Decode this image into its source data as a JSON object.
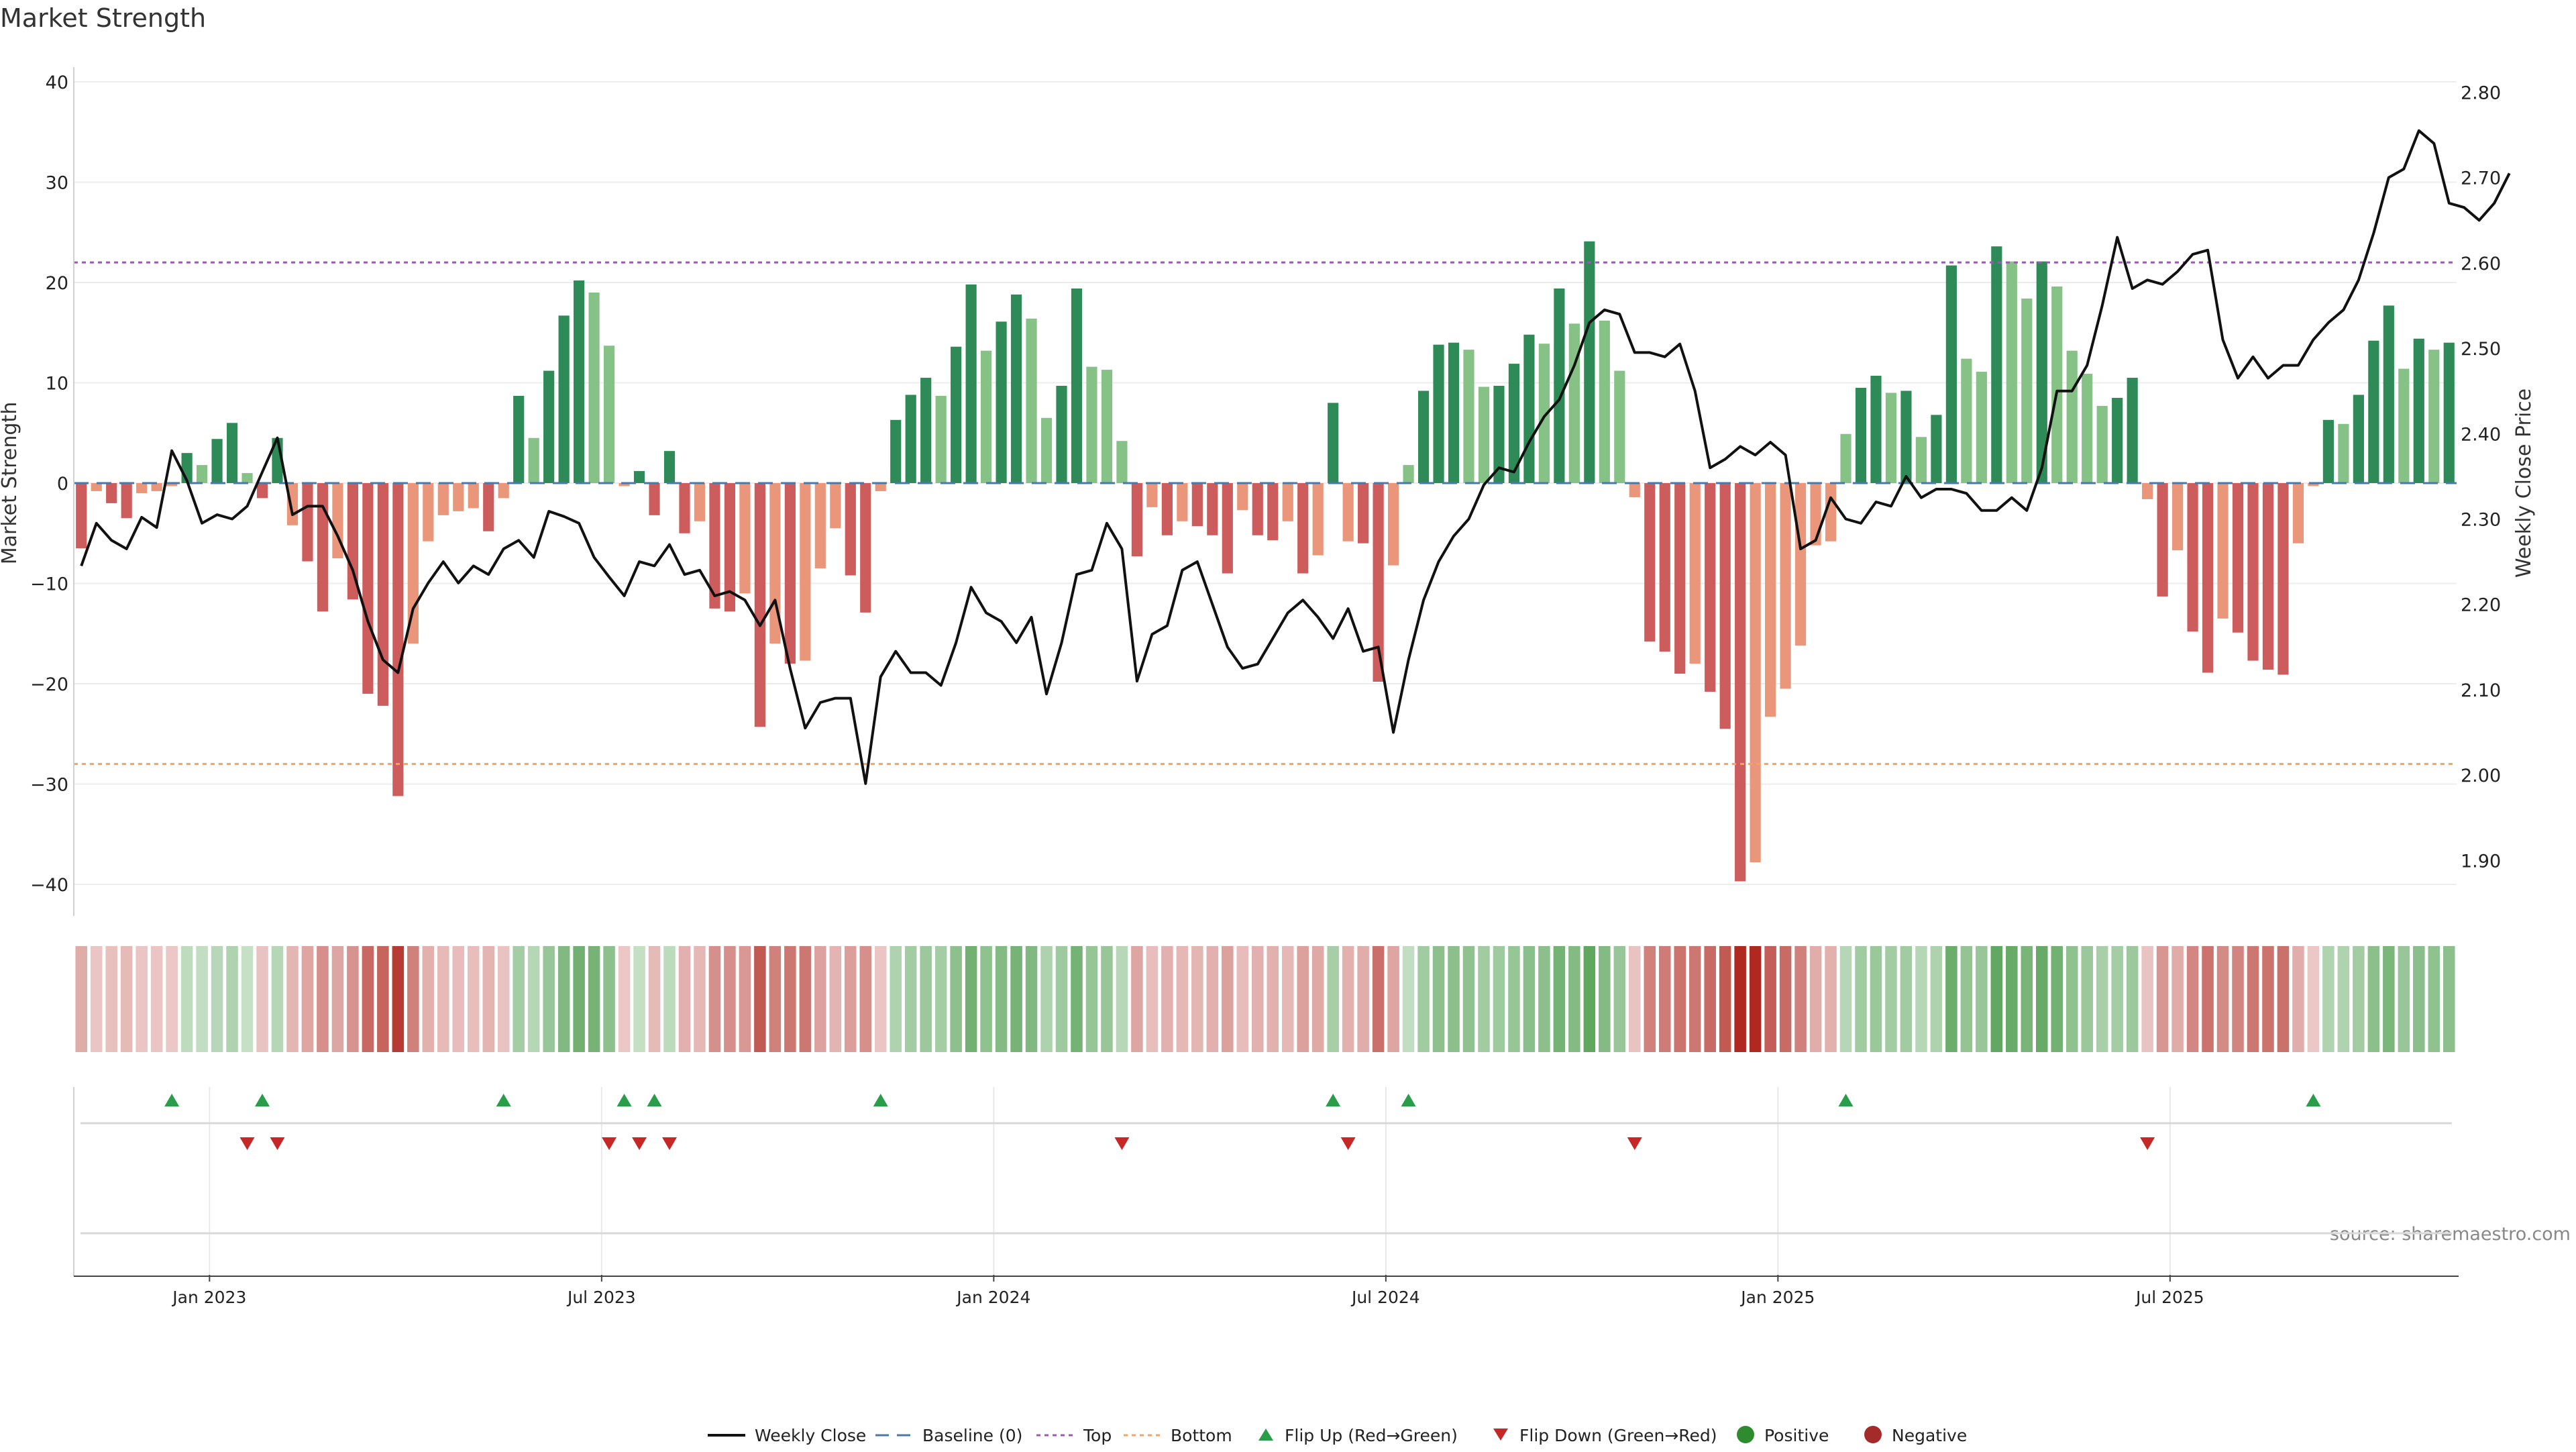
{
  "chart_data": {
    "type": "bar",
    "title": "Market Strength",
    "source": "source: sharemaestro.com",
    "y_left_label": "Market Strength",
    "y_right_label": "Weekly Close Price",
    "y_left_ticks": [
      "40",
      "30",
      "20",
      "10",
      "0",
      "−10",
      "−20",
      "−30",
      "−40"
    ],
    "y_left_tick_values": [
      40,
      30,
      20,
      10,
      0,
      -10,
      -20,
      -30,
      -40
    ],
    "y_right_ticks": [
      "2.80",
      "2.70",
      "2.60",
      "2.50",
      "2.40",
      "2.30",
      "2.20",
      "2.10",
      "2.00",
      "1.90"
    ],
    "y_right_tick_values": [
      2.8,
      2.7,
      2.6,
      2.5,
      2.4,
      2.3,
      2.2,
      2.1,
      2.0,
      1.9
    ],
    "ylim_left": [
      -43,
      43
    ],
    "ylim_right": [
      1.835,
      2.82
    ],
    "x_ticks": [
      "Jan 2023",
      "Jul 2023",
      "Jan 2024",
      "Jul 2024",
      "Jan 2025",
      "Jul 2025"
    ],
    "x_tick_week_index": [
      9,
      35,
      61,
      87,
      113,
      139
    ],
    "top_threshold": 22,
    "bottom_threshold": -28,
    "colors": {
      "pos_strong": "#2e8b57",
      "pos_light": "#86c286",
      "neg_strong": "#cd5c5c",
      "neg_light": "#e9967a",
      "close_line": "#111111",
      "top_line": "#9b59b6",
      "bottom_line": "#f4a460",
      "baseline": "#4a78a8",
      "flip_up": "#2a9d4a",
      "flip_down": "#c62828",
      "positive_dot": "#2e8b2e",
      "negative_dot": "#a52a2a"
    },
    "strength": [
      -6.5,
      -0.8,
      -2,
      -3.5,
      -1,
      -0.8,
      -0.3,
      3,
      1.8,
      4.4,
      6,
      1,
      -1.5,
      4.5,
      -4.2,
      -7.8,
      -12.8,
      -7.5,
      -11.6,
      -21,
      -22.2,
      -31.2,
      -16,
      -5.8,
      -3.2,
      -2.8,
      -2.5,
      -4.8,
      -1.5,
      8.7,
      4.5,
      11.2,
      16.7,
      20.2,
      19,
      13.7,
      -0.3,
      1.2,
      -3.2,
      3.2,
      -5,
      -3.8,
      -12.5,
      -12.8,
      -11,
      -24.3,
      -16,
      -18,
      -17.7,
      -8.5,
      -4.5,
      -9.2,
      -12.9,
      -0.8,
      6.3,
      8.8,
      10.5,
      8.7,
      13.6,
      19.8,
      13.2,
      16.1,
      18.8,
      16.4,
      6.5,
      9.7,
      19.4,
      11.6,
      11.3,
      4.2,
      -7.3,
      -2.4,
      -5.2,
      -3.8,
      -4.3,
      -5.2,
      -9,
      -2.7,
      -5.2,
      -5.7,
      -3.8,
      -9,
      -7.2,
      8,
      -5.8,
      -6,
      -19.8,
      -8.2,
      1.8,
      9.2,
      13.8,
      14,
      13.3,
      9.6,
      9.7,
      11.9,
      14.8,
      13.9,
      19.4,
      15.9,
      24.1,
      16.2,
      11.2,
      -1.4,
      -15.8,
      -16.8,
      -19,
      -18,
      -20.8,
      -24.5,
      -39.7,
      -37.8,
      -23.3,
      -20.5,
      -16.2,
      -6.2,
      -5.8,
      4.9,
      9.5,
      10.7,
      9,
      9.2,
      4.6,
      6.8,
      21.7,
      12.4,
      11.1,
      23.6,
      22.1,
      18.4,
      22.1,
      19.6,
      13.2,
      10.9,
      7.7,
      8.5,
      10.5,
      -1.6,
      -11.3,
      -6.7,
      -14.8,
      -18.9,
      -13.5,
      -14.9,
      -17.7,
      -18.6,
      -19.1,
      -6,
      -0.3,
      6.3,
      5.9,
      8.8,
      14.2,
      17.7,
      11.4,
      14.4,
      13.3,
      14
    ],
    "weekly_close": [
      2.245,
      2.295,
      2.275,
      2.265,
      2.302,
      2.29,
      2.38,
      2.345,
      2.295,
      2.305,
      2.3,
      2.315,
      2.355,
      2.395,
      2.305,
      2.315,
      2.315,
      2.28,
      2.24,
      2.18,
      2.135,
      2.12,
      2.195,
      2.225,
      2.25,
      2.225,
      2.245,
      2.235,
      2.265,
      2.275,
      2.255,
      2.309,
      2.303,
      2.295,
      2.255,
      2.232,
      2.21,
      2.25,
      2.245,
      2.27,
      2.235,
      2.24,
      2.21,
      2.215,
      2.205,
      2.175,
      2.205,
      2.125,
      2.055,
      2.085,
      2.09,
      2.09,
      1.99,
      2.115,
      2.145,
      2.12,
      2.12,
      2.105,
      2.155,
      2.22,
      2.19,
      2.18,
      2.155,
      2.185,
      2.095,
      2.155,
      2.235,
      2.24,
      2.295,
      2.265,
      2.11,
      2.165,
      2.175,
      2.24,
      2.25,
      2.2,
      2.15,
      2.125,
      2.13,
      2.16,
      2.19,
      2.205,
      2.185,
      2.16,
      2.195,
      2.145,
      2.15,
      2.05,
      2.135,
      2.205,
      2.25,
      2.28,
      2.3,
      2.34,
      2.36,
      2.355,
      2.39,
      2.42,
      2.44,
      2.48,
      2.53,
      2.545,
      2.54,
      2.495,
      2.495,
      2.49,
      2.505,
      2.45,
      2.36,
      2.37,
      2.385,
      2.375,
      2.39,
      2.375,
      2.265,
      2.275,
      2.325,
      2.3,
      2.295,
      2.32,
      2.315,
      2.35,
      2.325,
      2.335,
      2.335,
      2.33,
      2.31,
      2.31,
      2.325,
      2.31,
      2.36,
      2.45,
      2.45,
      2.48,
      2.55,
      2.63,
      2.57,
      2.58,
      2.575,
      2.59,
      2.61,
      2.615,
      2.51,
      2.465,
      2.49,
      2.465,
      2.48,
      2.48,
      2.51,
      2.53,
      2.545,
      2.58,
      2.635,
      2.7,
      2.71,
      2.755,
      2.74,
      2.67,
      2.665,
      2.65,
      2.67,
      2.705
    ],
    "flip_up_weeks": [
      6,
      12,
      28,
      36,
      38,
      53,
      83,
      88,
      117,
      148
    ],
    "flip_down_weeks": [
      11,
      13,
      35,
      37,
      39,
      69,
      84,
      103,
      137
    ]
  },
  "legend": [
    {
      "label": "Weekly Close",
      "icon": "solid-line"
    },
    {
      "label": "Baseline (0)",
      "icon": "dashed-line"
    },
    {
      "label": "Top",
      "icon": "dotted-line"
    },
    {
      "label": "Bottom",
      "icon": "dotted-line"
    },
    {
      "label": "Flip Up (Red→Green)",
      "icon": "triangle-up"
    },
    {
      "label": "Flip Down (Green→Red)",
      "icon": "triangle-down"
    },
    {
      "label": "Positive",
      "icon": "dot"
    },
    {
      "label": "Negative",
      "icon": "dot"
    }
  ]
}
